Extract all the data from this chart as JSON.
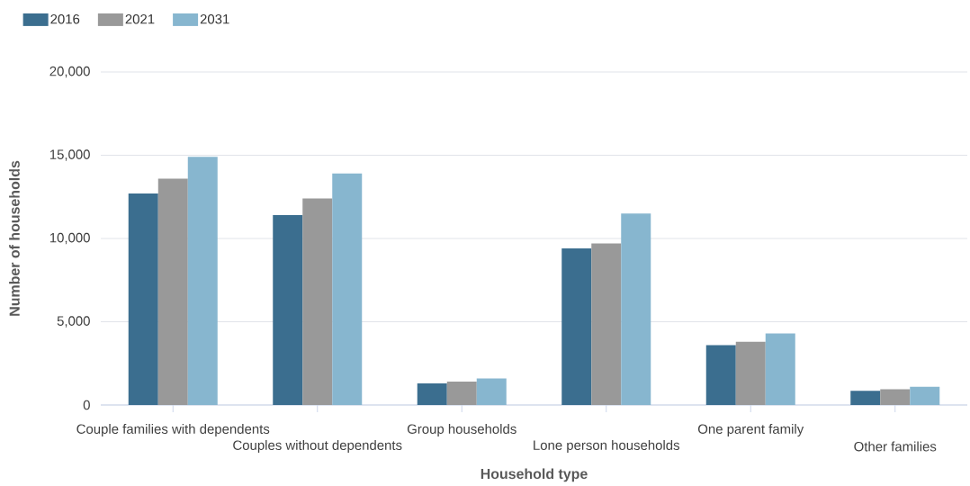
{
  "chart_data": {
    "type": "bar",
    "xlabel": "Household type",
    "ylabel": "Number of households",
    "categories": [
      "Couple families with dependents",
      "Couples without dependents",
      "Group households",
      "Lone person households",
      "One parent family",
      "Other families"
    ],
    "series": [
      {
        "name": "2016",
        "color": "#3b6e8f",
        "values": [
          12700,
          11400,
          1300,
          9400,
          3600,
          850
        ]
      },
      {
        "name": "2021",
        "color": "#999999",
        "values": [
          13600,
          12400,
          1400,
          9700,
          3800,
          950
        ]
      },
      {
        "name": "2031",
        "color": "#87b6cf",
        "values": [
          14900,
          13900,
          1600,
          11500,
          4300,
          1100
        ]
      }
    ],
    "ylim": [
      0,
      20000
    ],
    "yticks": [
      0,
      {
        "value": 5000,
        "label": "5,000"
      },
      {
        "value": 10000,
        "label": "10,000"
      },
      {
        "value": 15000,
        "label": "15,000"
      },
      {
        "value": 20000,
        "label": "20,000"
      }
    ],
    "grid": "y",
    "legend": "top left"
  }
}
